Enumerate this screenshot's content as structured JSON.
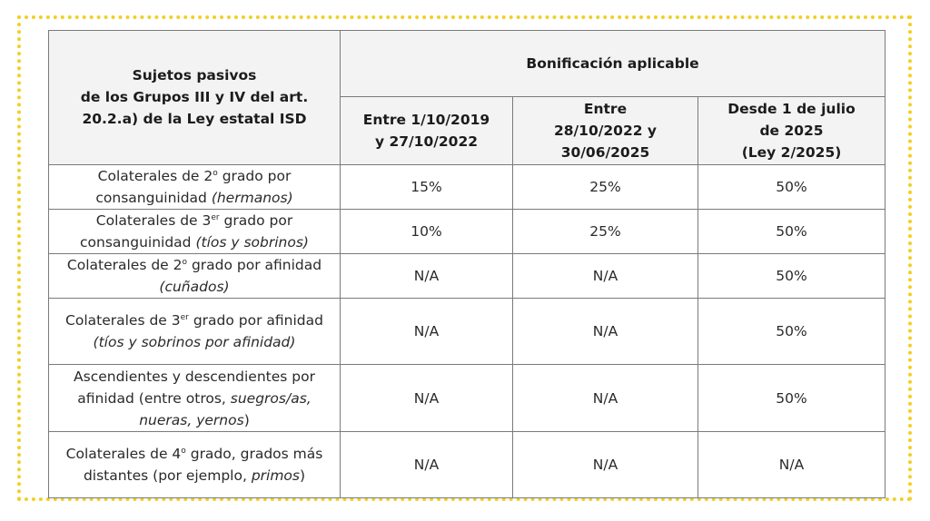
{
  "frame": {
    "border_color": "#f2cf24",
    "style": "dotted"
  },
  "table": {
    "header": {
      "subjects_label_lines": [
        "Sujetos pasivos",
        "de los Grupos III y IV del art.",
        "20.2.a) de la Ley estatal ISD"
      ],
      "group_label": "Bonificación aplicable",
      "periods": [
        {
          "lines": [
            "Entre 1/10/2019",
            "y 27/10/2022"
          ]
        },
        {
          "lines": [
            "Entre",
            "28/10/2022 y",
            "30/06/2025"
          ]
        },
        {
          "lines": [
            "Desde 1 de julio",
            "de 2025",
            "(Ley 2/2025)"
          ]
        }
      ]
    },
    "rows": [
      {
        "subject": {
          "pre": "Colaterales de 2",
          "sup": "o",
          "post": " grado por consanguinidad ",
          "italic": "(hermanos)",
          "tail": ""
        },
        "values": [
          "15%",
          "25%",
          "50%"
        ]
      },
      {
        "subject": {
          "pre": "Colaterales de 3",
          "sup": "er",
          "post": " grado por consanguinidad ",
          "italic": "(tíos y sobrinos)",
          "tail": ""
        },
        "values": [
          "10%",
          "25%",
          "50%"
        ]
      },
      {
        "subject": {
          "pre": "Colaterales de 2",
          "sup": "o",
          "post": " grado por afinidad ",
          "italic": "(cuñados)",
          "tail": ""
        },
        "values": [
          "N/A",
          "N/A",
          "50%"
        ]
      },
      {
        "subject": {
          "pre": "Colaterales de 3",
          "sup": "er",
          "post": " grado por afinidad ",
          "italic": "(tíos y sobrinos por afinidad)",
          "tail": ""
        },
        "values": [
          "N/A",
          "N/A",
          "50%"
        ]
      },
      {
        "subject": {
          "pre": "Ascendientes y descendientes por afinidad (entre otros, ",
          "sup": "",
          "post": "",
          "italic": "suegros/as, nueras, yernos",
          "tail": ")"
        },
        "values": [
          "N/A",
          "N/A",
          "50%"
        ]
      },
      {
        "subject": {
          "pre": "Colaterales de 4",
          "sup": "o",
          "post": " grado, grados más distantes (por ejemplo, ",
          "italic": "primos",
          "tail": ")"
        },
        "values": [
          "N/A",
          "N/A",
          "N/A"
        ]
      }
    ]
  }
}
